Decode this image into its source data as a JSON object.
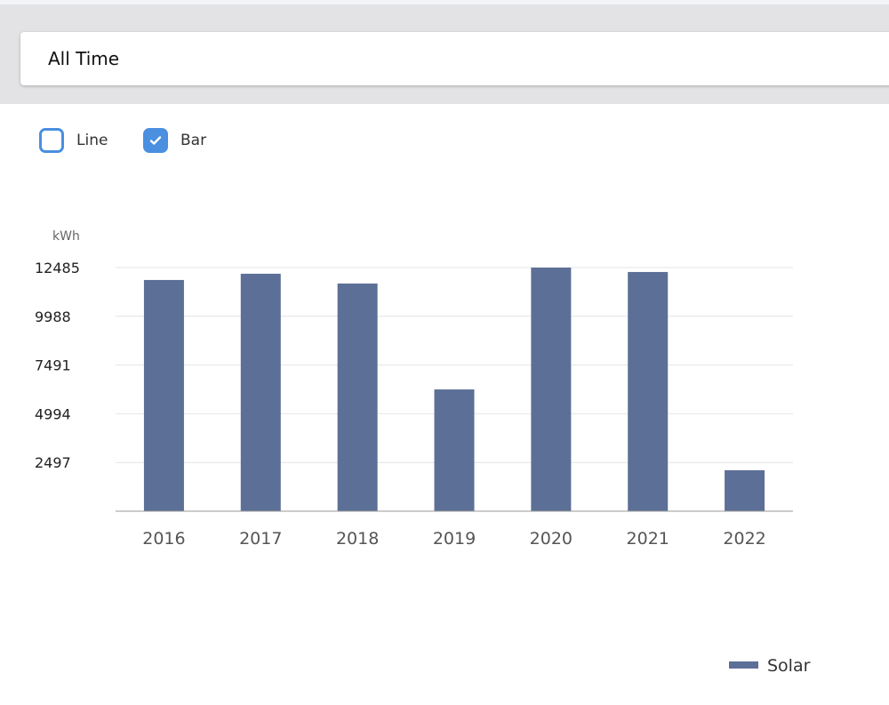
{
  "period_select": {
    "value": "All Time"
  },
  "toggles": [
    {
      "label": "Line",
      "checked": false
    },
    {
      "label": "Bar",
      "checked": true
    }
  ],
  "colors": {
    "bar": "#5c6f96",
    "accent": "#4a8fe0",
    "grid": "#e4e4e8"
  },
  "chart_data": {
    "type": "bar",
    "ylabel": "kWh",
    "categories": [
      "2016",
      "2017",
      "2018",
      "2019",
      "2020",
      "2021",
      "2022"
    ],
    "series": [
      {
        "name": "Solar",
        "values": [
          11850,
          12170,
          11670,
          6240,
          12485,
          12260,
          2100
        ]
      }
    ],
    "yticks": [
      2497,
      4994,
      7491,
      9988,
      12485
    ],
    "ylim": [
      0,
      12485
    ],
    "grid": true,
    "legend": "bottom-right"
  }
}
